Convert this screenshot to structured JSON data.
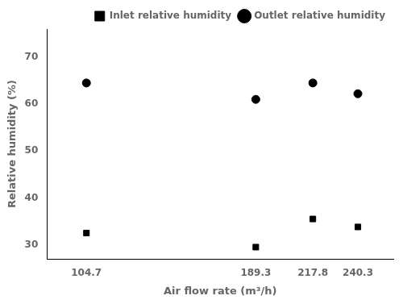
{
  "chart_data": {
    "type": "scatter",
    "x": [
      104.7,
      189.3,
      217.8,
      240.3
    ],
    "series": [
      {
        "name": "Inlet relative humidity",
        "color": "#000000",
        "marker": "square",
        "values": [
          32.5,
          29.5,
          35.5,
          33.8
        ]
      },
      {
        "name": "Outlet relative humidity",
        "color": "#000000",
        "marker": "circle",
        "values": [
          64.5,
          61.0,
          64.5,
          62.2
        ]
      }
    ],
    "xlabel": "Air flow rate (m³/h)",
    "ylabel": "Relative humidity (%)",
    "xlim": [
      85,
      258
    ],
    "xticks": [
      104.7,
      189.3,
      217.8,
      240.3
    ],
    "ylim": [
      27,
      76
    ],
    "yticks": [
      30,
      40,
      50,
      60,
      70
    ],
    "grid": false,
    "legend": "upper right"
  }
}
